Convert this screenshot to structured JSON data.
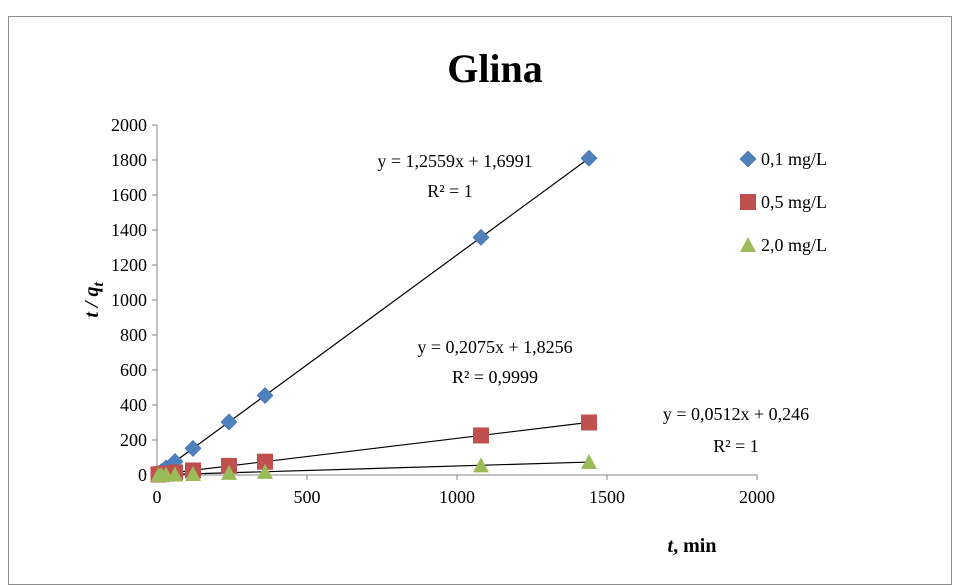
{
  "chart_data": {
    "type": "scatter",
    "title": "Glina",
    "xlabel_var": "t",
    "xlabel_unit": ", min",
    "ylabel_a": "t",
    "ylabel_sep": " / ",
    "ylabel_b": "q",
    "ylabel_sub": "t",
    "xlim": [
      0,
      2000
    ],
    "ylim": [
      0,
      2000
    ],
    "x_ticks": [
      "0",
      "500",
      "1000",
      "1500",
      "2000"
    ],
    "y_ticks": [
      "0",
      "200",
      "400",
      "600",
      "800",
      "1000",
      "1200",
      "1400",
      "1600",
      "1800",
      "2000"
    ],
    "x_tick_values": [
      0,
      500,
      1000,
      1500,
      2000
    ],
    "y_tick_values": [
      0,
      200,
      400,
      600,
      800,
      1000,
      1200,
      1400,
      1600,
      1800,
      2000
    ],
    "grid": false,
    "legend_position": "right",
    "series": [
      {
        "name": "0,1 mg/L",
        "marker": "diamond",
        "color": "#4f81bd",
        "x": [
          5,
          15,
          30,
          60,
          120,
          240,
          360,
          1080,
          1440
        ],
        "y": [
          8,
          20,
          40,
          77,
          152,
          303,
          454,
          1358,
          1810
        ],
        "trend": {
          "slope": 1.2559,
          "intercept": 1.6991
        },
        "equation": "y = 1,2559x   + 1,6991",
        "r2": "R² = 1"
      },
      {
        "name": "0,5 mg/L",
        "marker": "square",
        "color": "#c0504d",
        "x": [
          5,
          15,
          30,
          60,
          120,
          240,
          360,
          1080,
          1440
        ],
        "y": [
          3,
          5,
          8,
          14,
          26,
          52,
          76,
          226,
          300
        ],
        "trend": {
          "slope": 0.2075,
          "intercept": 1.8256
        },
        "equation": "y = 0,2075x   + 1,8256",
        "r2": "R² = 0,9999"
      },
      {
        "name": "2,0 mg/L",
        "marker": "triangle",
        "color": "#9bbb59",
        "x": [
          5,
          15,
          30,
          60,
          120,
          240,
          360,
          1080,
          1440
        ],
        "y": [
          1,
          1,
          2,
          3,
          6,
          12,
          18,
          55,
          74
        ],
        "trend": {
          "slope": 0.0512,
          "intercept": 0.246
        },
        "equation": "y = 0,0512x   + 0,246",
        "r2": "R² = 1"
      }
    ]
  }
}
